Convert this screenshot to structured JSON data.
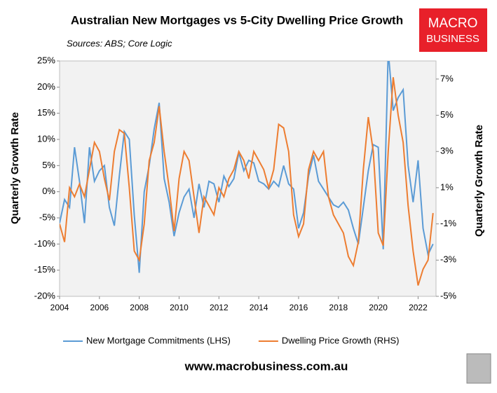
{
  "chart_data": {
    "type": "line",
    "title": "Australian New Mortgages vs 5-City Dwelling Price Growth",
    "subtitle": "Sources: ABS; Core Logic",
    "ylabel": "Quarterly  Growth Rate",
    "y2label": "Quarterly Growth Rate",
    "x": [
      2004,
      2004.25,
      2004.5,
      2004.75,
      2005,
      2005.25,
      2005.5,
      2005.75,
      2006,
      2006.25,
      2006.5,
      2006.75,
      2007,
      2007.25,
      2007.5,
      2007.75,
      2008,
      2008.25,
      2008.5,
      2008.75,
      2009,
      2009.25,
      2009.5,
      2009.75,
      2010,
      2010.25,
      2010.5,
      2010.75,
      2011,
      2011.25,
      2011.5,
      2011.75,
      2012,
      2012.25,
      2012.5,
      2012.75,
      2013,
      2013.25,
      2013.5,
      2013.75,
      2014,
      2014.25,
      2014.5,
      2014.75,
      2015,
      2015.25,
      2015.5,
      2015.75,
      2016,
      2016.25,
      2016.5,
      2016.75,
      2017,
      2017.25,
      2017.5,
      2017.75,
      2018,
      2018.25,
      2018.5,
      2018.75,
      2019,
      2019.25,
      2019.5,
      2019.75,
      2020,
      2020.25,
      2020.5,
      2020.75,
      2021,
      2021.25,
      2021.5,
      2021.75,
      2022,
      2022.25,
      2022.5,
      2022.75
    ],
    "series": [
      {
        "name": "New Mortgage Commitments (LHS)",
        "color": "#5b9bd5",
        "axis": "y",
        "values": [
          -6,
          -1.5,
          -3,
          8.5,
          2,
          -6,
          8.5,
          2,
          4,
          5,
          -3,
          -6.5,
          3,
          11.5,
          10,
          -4.5,
          -15.5,
          0,
          5,
          12,
          17,
          2.5,
          -2,
          -8.5,
          -4,
          -1,
          0.5,
          -5,
          1.5,
          -3,
          2,
          1.5,
          -2,
          3,
          1,
          2.5,
          7.5,
          4,
          6,
          5.5,
          2,
          1.5,
          0.5,
          2,
          1,
          5,
          1.5,
          0.5,
          -7,
          -4,
          3,
          7,
          2,
          0.5,
          -1,
          -2.5,
          -3,
          -2,
          -3.5,
          -7,
          -10,
          -3,
          4,
          9,
          8.5,
          -11,
          27,
          15.5,
          18,
          19.5,
          5,
          -2,
          6,
          -7,
          -12,
          -10
        ]
      },
      {
        "name": "Dwelling Price Growth (RHS)",
        "color": "#ed7d31",
        "axis": "y2",
        "values": [
          -1,
          -2,
          1,
          0.5,
          1.2,
          0.5,
          2,
          3.5,
          3,
          1.5,
          0.3,
          3,
          4.2,
          4,
          1,
          -2.5,
          -3,
          -1,
          2.5,
          3.5,
          5.5,
          3,
          1,
          -1.4,
          1.5,
          3,
          2.5,
          0.5,
          -1.5,
          0.5,
          0,
          -0.5,
          1,
          0.5,
          1.5,
          2,
          3,
          2.5,
          1.5,
          3,
          2.5,
          2,
          1,
          2,
          4.5,
          4.3,
          3,
          -0.5,
          -1.7,
          -1,
          2,
          3,
          2.5,
          3,
          0.5,
          -0.5,
          -1,
          -1.5,
          -2.8,
          -3.3,
          -2,
          2,
          4.9,
          3,
          -1.5,
          -2.2,
          3,
          7.1,
          5,
          3.5,
          0,
          -2.5,
          -4.4,
          -3.5,
          -3,
          -0.4
        ]
      }
    ],
    "xlim": [
      2004,
      2022.9
    ],
    "xticks": [
      2004,
      2006,
      2008,
      2010,
      2012,
      2014,
      2016,
      2018,
      2020,
      2022
    ],
    "ylim": [
      -20,
      25
    ],
    "yticks": [
      {
        "value": -20,
        "label": "-20%"
      },
      {
        "value": -15,
        "label": "-15%"
      },
      {
        "value": -10,
        "label": "-10%"
      },
      {
        "value": -5,
        "label": "-5%"
      },
      {
        "value": 0,
        "label": "0%"
      },
      {
        "value": 5,
        "label": "5%"
      },
      {
        "value": 10,
        "label": "10%"
      },
      {
        "value": 15,
        "label": "15%"
      },
      {
        "value": 20,
        "label": "20%"
      },
      {
        "value": 25,
        "label": "25%"
      }
    ],
    "y2lim": [
      -5,
      8
    ],
    "y2ticks": [
      {
        "value": -5,
        "label": "-5%"
      },
      {
        "value": -3,
        "label": "-3%"
      },
      {
        "value": -1,
        "label": "-1%"
      },
      {
        "value": 1,
        "label": "1%"
      },
      {
        "value": 3,
        "label": "3%"
      },
      {
        "value": 5,
        "label": "5%"
      },
      {
        "value": 7,
        "label": "7%"
      }
    ],
    "grid": false,
    "legend": "bottom"
  },
  "logo": {
    "line1": "MACRO",
    "line2": "BUSINESS"
  },
  "website": "www.macrobusiness.com.au"
}
